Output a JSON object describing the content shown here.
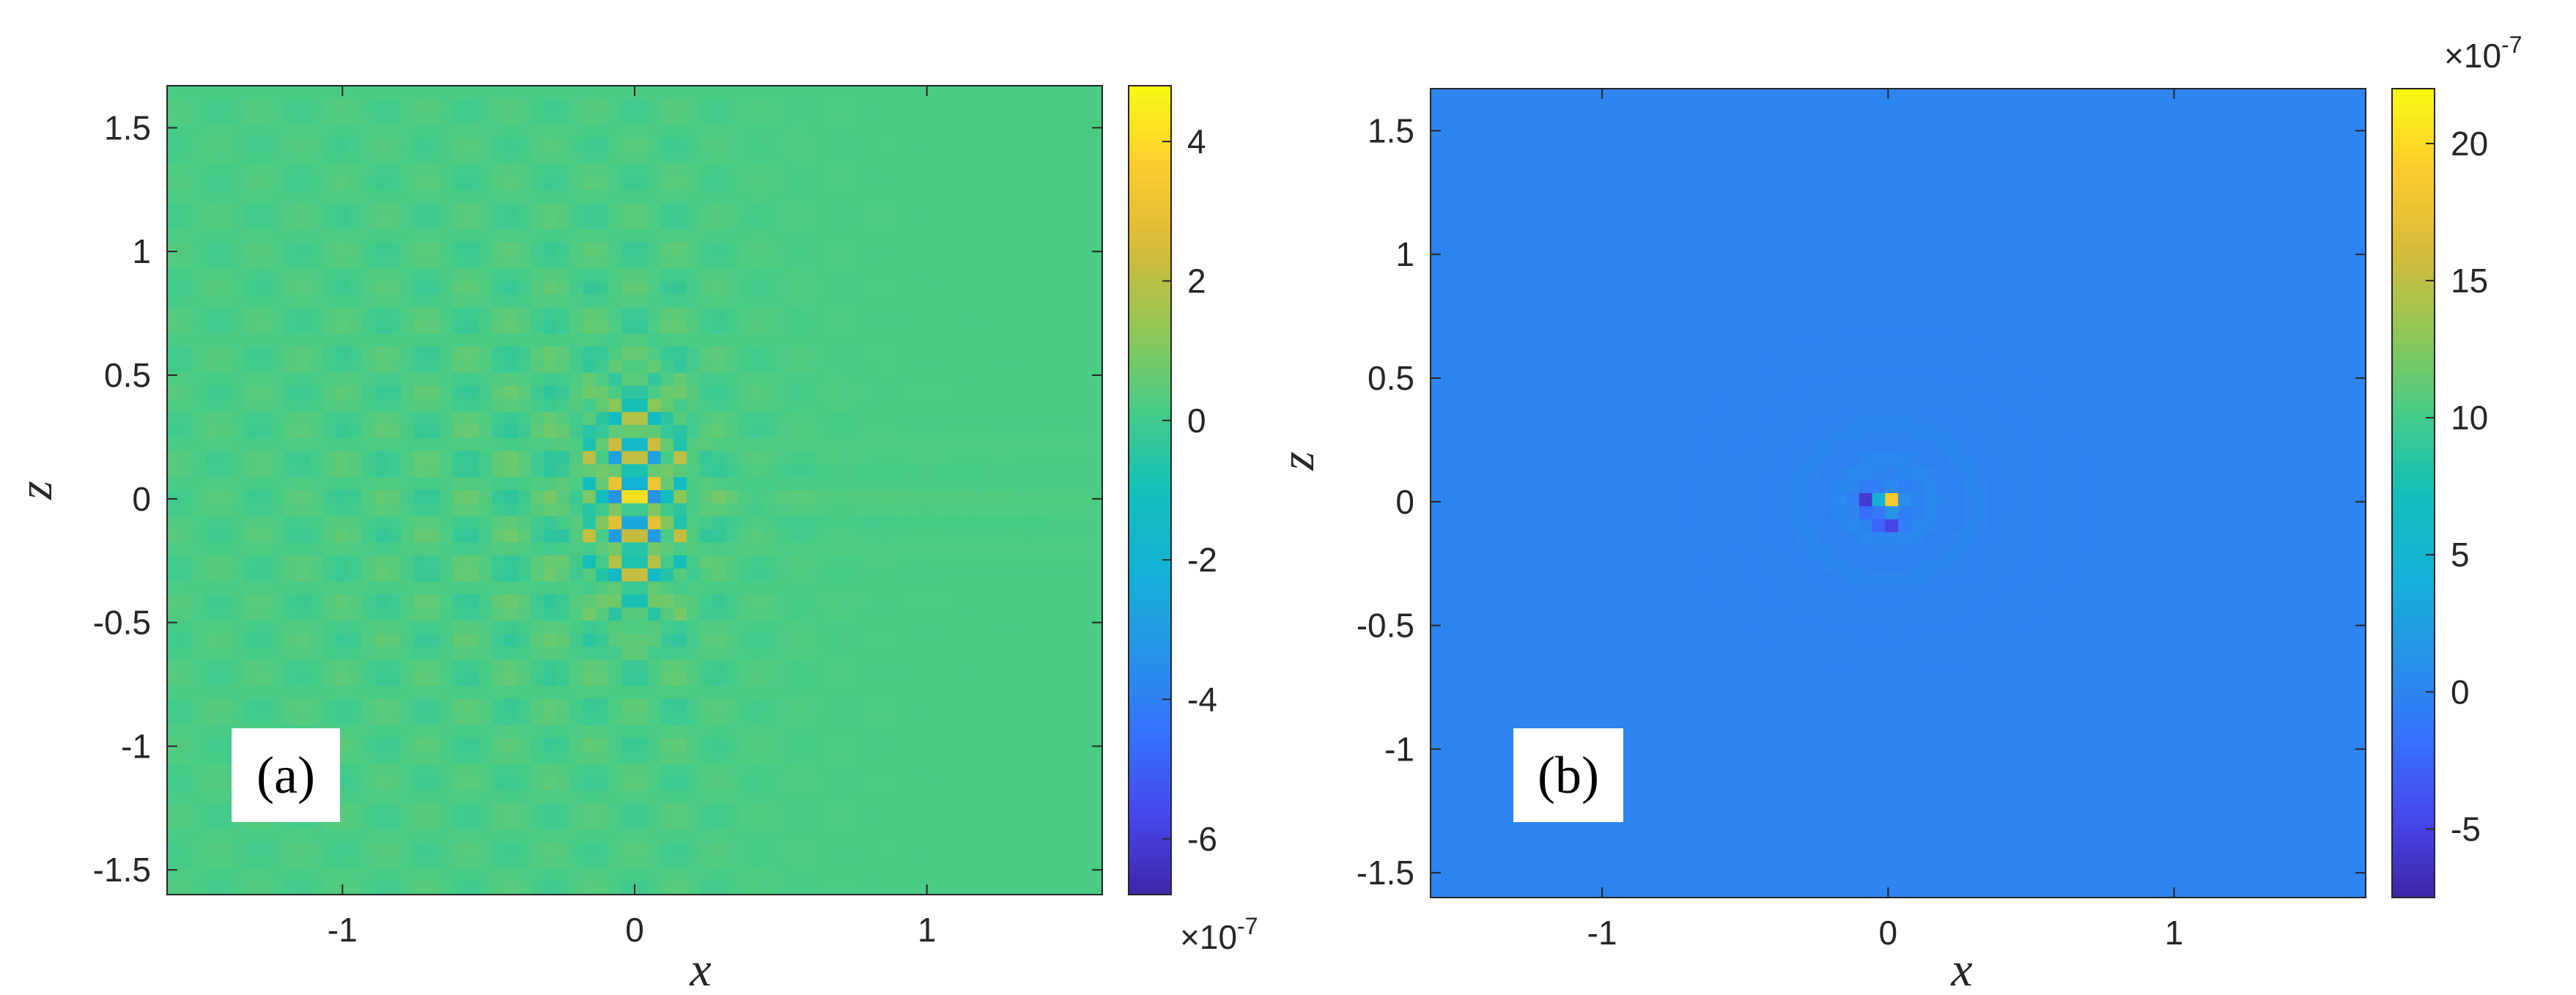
{
  "chart_data": [
    {
      "type": "heatmap",
      "panel_label": "(a)",
      "xlabel": "x",
      "ylabel": "z",
      "xlim": [
        -1.6,
        1.6
      ],
      "ylim": [
        -1.6,
        1.67
      ],
      "xticks": [
        "-1",
        "0",
        "1"
      ],
      "xtick_values": [
        -1,
        0,
        1
      ],
      "yticks": [
        "1.5",
        "1",
        "0.5",
        "0",
        "-0.5",
        "-1",
        "-1.5"
      ],
      "ytick_values": [
        1.5,
        1,
        0.5,
        0,
        -0.5,
        -1,
        -1.5
      ],
      "colorbar": {
        "clim": [
          -6.8,
          4.8
        ],
        "ticks": [
          "4",
          "2",
          "0",
          "-2",
          "-4",
          "-6"
        ],
        "tick_values": [
          4,
          2,
          0,
          -2,
          -4,
          -6
        ],
        "exponent_base": "×10",
        "exponent": "-7"
      },
      "background_value": 0.2,
      "pattern": "interference fringes radiating from a central source near x=0, z=0; peak magnitude about 4.8e-7 (max) and -6.8e-7 (min)",
      "colormap": "parula"
    },
    {
      "type": "heatmap",
      "panel_label": "(b)",
      "xlabel": "x",
      "ylabel": "z",
      "xlim": [
        -1.6,
        1.67
      ],
      "ylim": [
        -1.6,
        1.67
      ],
      "xticks": [
        "-1",
        "0",
        "1"
      ],
      "xtick_values": [
        -1,
        0,
        1
      ],
      "yticks": [
        "1.5",
        "1",
        "0.5",
        "0",
        "-0.5",
        "-1",
        "-1.5"
      ],
      "ytick_values": [
        1.5,
        1,
        0.5,
        0,
        -0.5,
        -1,
        -1.5
      ],
      "colorbar": {
        "clim": [
          -7.5,
          22
        ],
        "ticks": [
          "20",
          "15",
          "10",
          "5",
          "0",
          "-5"
        ],
        "tick_values": [
          20,
          15,
          10,
          5,
          0,
          -5
        ],
        "exponent_base": "×10",
        "exponent": "-7"
      },
      "background_value": 0,
      "pattern": "localized peak at the origin (about 22e-7) with faint concentric rings",
      "colormap": "parula"
    }
  ]
}
